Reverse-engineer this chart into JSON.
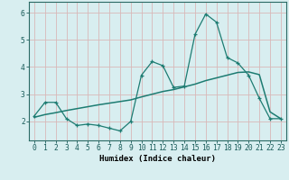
{
  "x": [
    0,
    1,
    2,
    3,
    4,
    5,
    6,
    7,
    8,
    9,
    10,
    11,
    12,
    13,
    14,
    15,
    16,
    17,
    18,
    19,
    20,
    21,
    22,
    23
  ],
  "y_curve": [
    2.2,
    2.7,
    2.7,
    2.1,
    1.85,
    1.9,
    1.85,
    1.75,
    1.65,
    2.0,
    3.7,
    4.2,
    4.05,
    3.25,
    3.3,
    5.2,
    5.95,
    5.65,
    4.35,
    4.15,
    3.7,
    2.85,
    2.1,
    2.1
  ],
  "y_trend": [
    2.15,
    2.25,
    2.32,
    2.4,
    2.47,
    2.54,
    2.61,
    2.67,
    2.73,
    2.79,
    2.9,
    3.0,
    3.1,
    3.17,
    3.27,
    3.37,
    3.5,
    3.6,
    3.7,
    3.8,
    3.82,
    3.72,
    2.35,
    2.1
  ],
  "line_color": "#1d7c72",
  "bg_color": "#d8eef0",
  "grid_color_v": "#d8b8b8",
  "grid_color_h": "#d8b8b8",
  "xlabel": "Humidex (Indice chaleur)",
  "ylim": [
    1.3,
    6.4
  ],
  "xlim": [
    -0.5,
    23.5
  ],
  "yticks": [
    2,
    3,
    4,
    5,
    6
  ],
  "xticks": [
    0,
    1,
    2,
    3,
    4,
    5,
    6,
    7,
    8,
    9,
    10,
    11,
    12,
    13,
    14,
    15,
    16,
    17,
    18,
    19,
    20,
    21,
    22,
    23
  ],
  "label_fontsize": 6.5,
  "tick_fontsize": 5.8
}
